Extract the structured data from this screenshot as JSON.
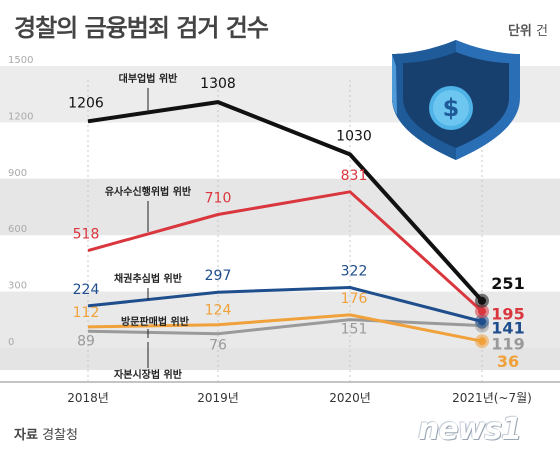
{
  "title": "경찰의 금융범죄 검거 건수",
  "unit_label": "단위",
  "unit_value": "건",
  "source_label": "자료",
  "source_value": "경찰청",
  "logo_text": "news1",
  "icon": "shield-dollar-icon",
  "colors": {
    "대부업법 위반": "#111111",
    "유사수신행위법 위반": "#d9363e",
    "채권추심법 위반": "#1f4e8c",
    "방문판매법 위반": "#f0a13a",
    "자본시장법 위반": "#9a9a9a",
    "shield": "#2a6fb5"
  },
  "chart_data": {
    "type": "line",
    "title": "경찰의 금융범죄 검거 건수",
    "categories": [
      "2018년",
      "2019년",
      "2020년",
      "2021년(~7월)"
    ],
    "y_ticks": [
      0,
      300,
      600,
      900,
      1200,
      1500
    ],
    "ylim": [
      0,
      1500
    ],
    "grid": true,
    "series": [
      {
        "name": "대부업법 위반",
        "values": [
          1206,
          1308,
          1030,
          251
        ]
      },
      {
        "name": "유사수신행위법 위반",
        "values": [
          518,
          710,
          831,
          195
        ]
      },
      {
        "name": "채권추심법 위반",
        "values": [
          224,
          297,
          322,
          141
        ]
      },
      {
        "name": "방문판매법 위반",
        "values": [
          112,
          124,
          176,
          36
        ]
      },
      {
        "name": "자본시장법 위반",
        "values": [
          89,
          76,
          151,
          119
        ]
      }
    ]
  }
}
